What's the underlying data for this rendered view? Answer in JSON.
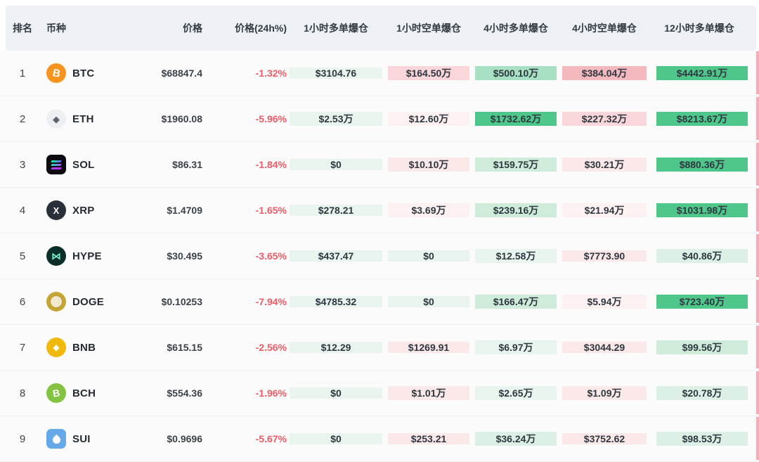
{
  "palette": {
    "g0": "#e9f4ee",
    "g1": "#dcf0e5",
    "g2": "#cfecdb",
    "g3": "#a8e0c3",
    "g4": "#4fc78b",
    "p0": "#fdf1f2",
    "p1": "#fbe8e9",
    "p2": "#f8d6d9",
    "p3": "#f4b9be",
    "header_bg": "#edf0f4",
    "negative_text": "#f15b65",
    "sliver": "#f2aeb4"
  },
  "table": {
    "headers": [
      {
        "key": "rank",
        "label": "排名"
      },
      {
        "key": "coin",
        "label": "币种"
      },
      {
        "key": "price",
        "label": "价格"
      },
      {
        "key": "change24h",
        "label": "价格(24h%)"
      },
      {
        "key": "liq_1h_long",
        "label": "1小时多单爆仓"
      },
      {
        "key": "liq_1h_short",
        "label": "1小时空单爆仓"
      },
      {
        "key": "liq_4h_long",
        "label": "4小时多单爆仓"
      },
      {
        "key": "liq_4h_short",
        "label": "4小时空单爆仓"
      },
      {
        "key": "liq_12h_long",
        "label": "12小时多单爆仓"
      }
    ],
    "rows": [
      {
        "rank": "1",
        "symbol": "BTC",
        "price": "$68847.4",
        "change": "-1.32%",
        "cells": [
          {
            "v": "$3104.76",
            "c": "g0"
          },
          {
            "v": "$164.50万",
            "c": "p2"
          },
          {
            "v": "$500.10万",
            "c": "g3"
          },
          {
            "v": "$384.04万",
            "c": "p3"
          },
          {
            "v": "$4442.91万",
            "c": "g4"
          }
        ]
      },
      {
        "rank": "2",
        "symbol": "ETH",
        "price": "$1960.08",
        "change": "-5.96%",
        "cells": [
          {
            "v": "$2.53万",
            "c": "g0"
          },
          {
            "v": "$12.60万",
            "c": "p0"
          },
          {
            "v": "$1732.62万",
            "c": "g4"
          },
          {
            "v": "$227.32万",
            "c": "p2"
          },
          {
            "v": "$8213.67万",
            "c": "g4"
          }
        ]
      },
      {
        "rank": "3",
        "symbol": "SOL",
        "price": "$86.31",
        "change": "-1.84%",
        "cells": [
          {
            "v": "$0",
            "c": "g0"
          },
          {
            "v": "$10.10万",
            "c": "p1"
          },
          {
            "v": "$159.75万",
            "c": "g2"
          },
          {
            "v": "$30.21万",
            "c": "p1"
          },
          {
            "v": "$880.36万",
            "c": "g4"
          }
        ]
      },
      {
        "rank": "4",
        "symbol": "XRP",
        "price": "$1.4709",
        "change": "-1.65%",
        "cells": [
          {
            "v": "$278.21",
            "c": "g0"
          },
          {
            "v": "$3.69万",
            "c": "p0"
          },
          {
            "v": "$239.16万",
            "c": "g2"
          },
          {
            "v": "$21.94万",
            "c": "p0"
          },
          {
            "v": "$1031.98万",
            "c": "g4"
          }
        ]
      },
      {
        "rank": "5",
        "symbol": "HYPE",
        "price": "$30.495",
        "change": "-3.65%",
        "cells": [
          {
            "v": "$437.47",
            "c": "g0"
          },
          {
            "v": "$0",
            "c": "g0"
          },
          {
            "v": "$12.58万",
            "c": "g0"
          },
          {
            "v": "$7773.90",
            "c": "p1"
          },
          {
            "v": "$40.86万",
            "c": "g1"
          }
        ]
      },
      {
        "rank": "6",
        "symbol": "DOGE",
        "price": "$0.10253",
        "change": "-7.94%",
        "cells": [
          {
            "v": "$4785.32",
            "c": "g0"
          },
          {
            "v": "$0",
            "c": "g0"
          },
          {
            "v": "$166.47万",
            "c": "g2"
          },
          {
            "v": "$5.94万",
            "c": "p0"
          },
          {
            "v": "$723.40万",
            "c": "g4"
          }
        ]
      },
      {
        "rank": "7",
        "symbol": "BNB",
        "price": "$615.15",
        "change": "-2.56%",
        "cells": [
          {
            "v": "$12.29",
            "c": "g0"
          },
          {
            "v": "$1269.91",
            "c": "p1"
          },
          {
            "v": "$6.97万",
            "c": "g0"
          },
          {
            "v": "$3044.29",
            "c": "p1"
          },
          {
            "v": "$99.56万",
            "c": "g2"
          }
        ]
      },
      {
        "rank": "8",
        "symbol": "BCH",
        "price": "$554.36",
        "change": "-1.96%",
        "cells": [
          {
            "v": "$0",
            "c": "g0"
          },
          {
            "v": "$1.01万",
            "c": "p1"
          },
          {
            "v": "$2.65万",
            "c": "g0"
          },
          {
            "v": "$1.09万",
            "c": "p1"
          },
          {
            "v": "$20.78万",
            "c": "g1"
          }
        ]
      },
      {
        "rank": "9",
        "symbol": "SUI",
        "price": "$0.9696",
        "change": "-5.67%",
        "cells": [
          {
            "v": "$0",
            "c": "g0"
          },
          {
            "v": "$253.21",
            "c": "p1"
          },
          {
            "v": "$36.24万",
            "c": "g1"
          },
          {
            "v": "$3752.62",
            "c": "p1"
          },
          {
            "v": "$98.53万",
            "c": "g1"
          }
        ]
      }
    ]
  },
  "icons": {
    "BTC": {
      "name": "btc-icon",
      "glyph": "B"
    },
    "ETH": {
      "name": "eth-icon",
      "glyph": "◆"
    },
    "SOL": {
      "name": "sol-icon",
      "glyph": ""
    },
    "XRP": {
      "name": "xrp-icon",
      "glyph": "X"
    },
    "HYPE": {
      "name": "hype-icon",
      "glyph": "⋈"
    },
    "DOGE": {
      "name": "doge-icon",
      "glyph": ""
    },
    "BNB": {
      "name": "bnb-icon",
      "glyph": "◆"
    },
    "BCH": {
      "name": "bch-icon",
      "glyph": "B"
    },
    "SUI": {
      "name": "sui-icon",
      "glyph": ""
    }
  }
}
